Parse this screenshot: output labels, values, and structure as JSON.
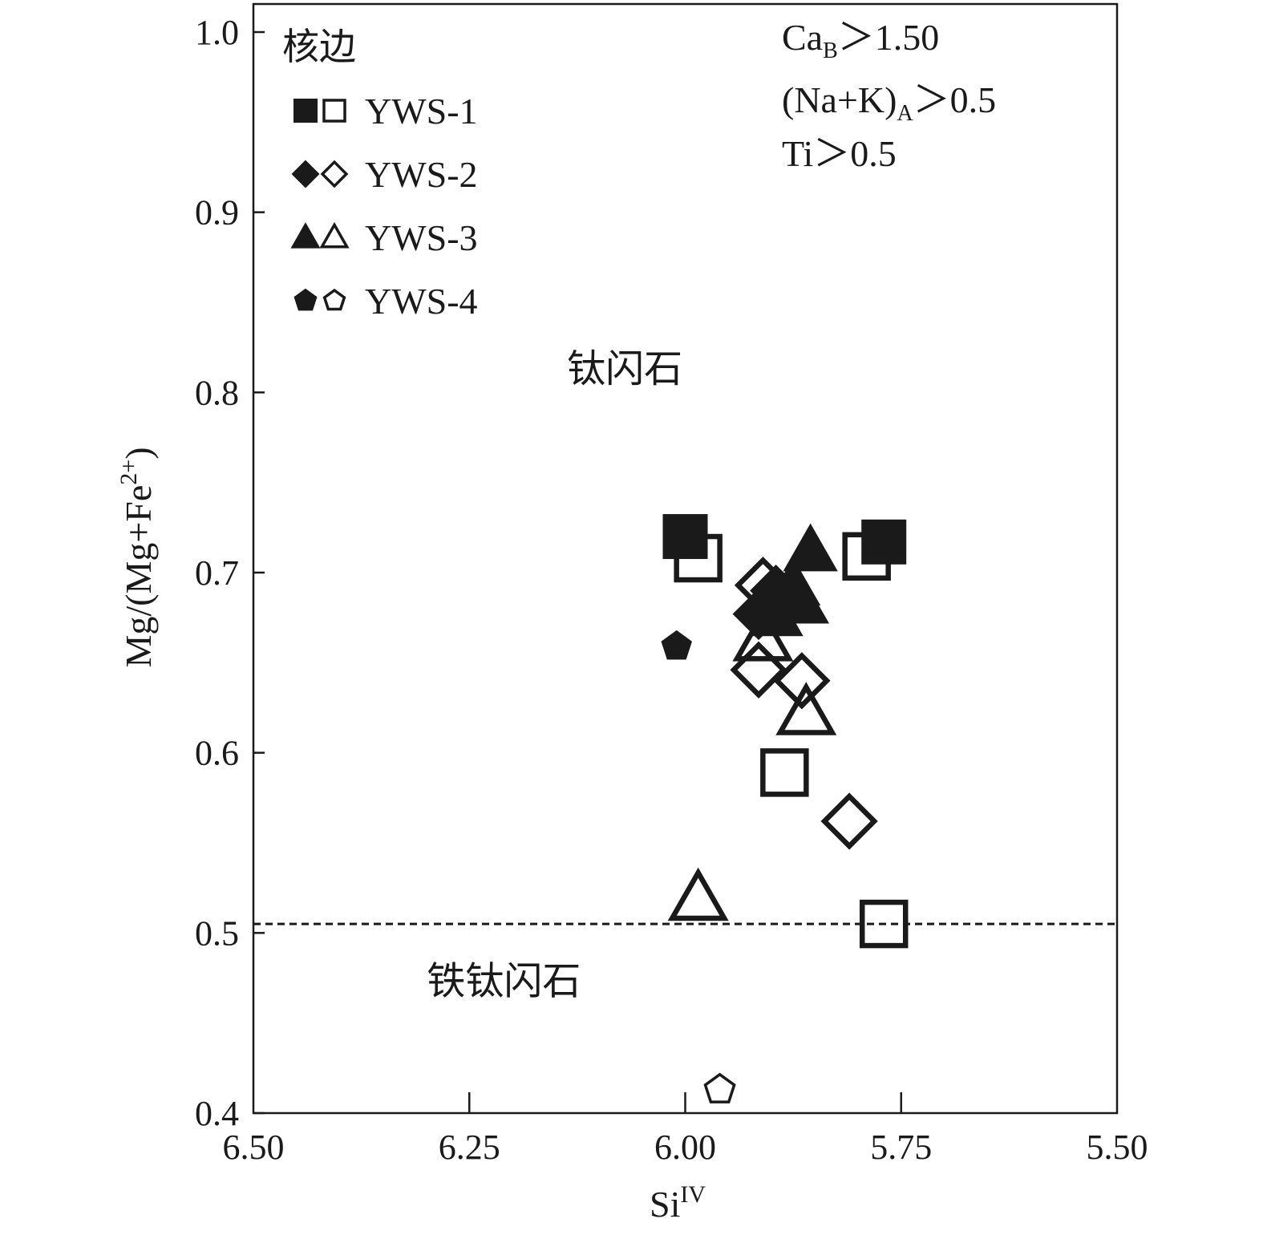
{
  "chart_data": {
    "type": "scatter",
    "xlabel": "Si",
    "xlabel_sup": "IV",
    "ylabel": "Mg/(Mg+Fe",
    "ylabel_sup": "2+",
    "ylabel_close": ")",
    "x_reversed": true,
    "xlim": [
      6.5,
      5.5
    ],
    "ylim": [
      0.4,
      1.0
    ],
    "x_ticks": [
      "6.50",
      "6.25",
      "6.00",
      "5.75",
      "5.50"
    ],
    "y_ticks": [
      "0.4",
      "0.5",
      "0.6",
      "0.7",
      "0.8",
      "0.9",
      "1.0"
    ],
    "grid": false,
    "legend": {
      "title": "核边",
      "placement": "top-left",
      "items": [
        {
          "label": "YWS-1",
          "marker": "square"
        },
        {
          "label": "YWS-2",
          "marker": "diamond"
        },
        {
          "label": "YWS-3",
          "marker": "triangle"
        },
        {
          "label": "YWS-4",
          "marker": "pentagon"
        }
      ]
    },
    "conditions": [
      {
        "main": "Ca",
        "sub": "B",
        "rest": "＞1.50"
      },
      {
        "main": "(Na+K)",
        "sub": "A",
        "rest": "＞0.5"
      },
      {
        "main": "Ti＞0.5",
        "sub": "",
        "rest": ""
      }
    ],
    "regions": [
      {
        "label": "钛闪石",
        "x": 6.07,
        "y": 0.806
      },
      {
        "label": "铁钛闪石",
        "x": 6.21,
        "y": 0.466
      }
    ],
    "boundary_line": {
      "y": 0.505,
      "style": "dashed"
    },
    "series": [
      {
        "name": "YWS-1",
        "marker": "square",
        "core": [
          [
            6.0,
            0.72
          ],
          [
            5.77,
            0.717
          ]
        ],
        "rim": [
          [
            5.985,
            0.708
          ],
          [
            5.79,
            0.709
          ],
          [
            5.885,
            0.589
          ],
          [
            5.77,
            0.505
          ]
        ]
      },
      {
        "name": "YWS-2",
        "marker": "diamond",
        "core": [
          [
            5.915,
            0.677
          ],
          [
            5.895,
            0.69
          ]
        ],
        "rim": [
          [
            5.91,
            0.693
          ],
          [
            5.915,
            0.646
          ],
          [
            5.865,
            0.64
          ],
          [
            5.81,
            0.562
          ]
        ]
      },
      {
        "name": "YWS-3",
        "marker": "triangle",
        "core": [
          [
            5.855,
            0.712
          ],
          [
            5.875,
            0.693
          ],
          [
            5.865,
            0.683
          ],
          [
            5.895,
            0.676
          ]
        ],
        "rim": [
          [
            5.91,
            0.663
          ],
          [
            5.86,
            0.622
          ],
          [
            5.985,
            0.519
          ]
        ]
      },
      {
        "name": "YWS-4",
        "marker": "pentagon",
        "core": [
          [
            6.01,
            0.659
          ]
        ],
        "rim": [
          [
            5.96,
            0.413
          ]
        ]
      }
    ]
  }
}
